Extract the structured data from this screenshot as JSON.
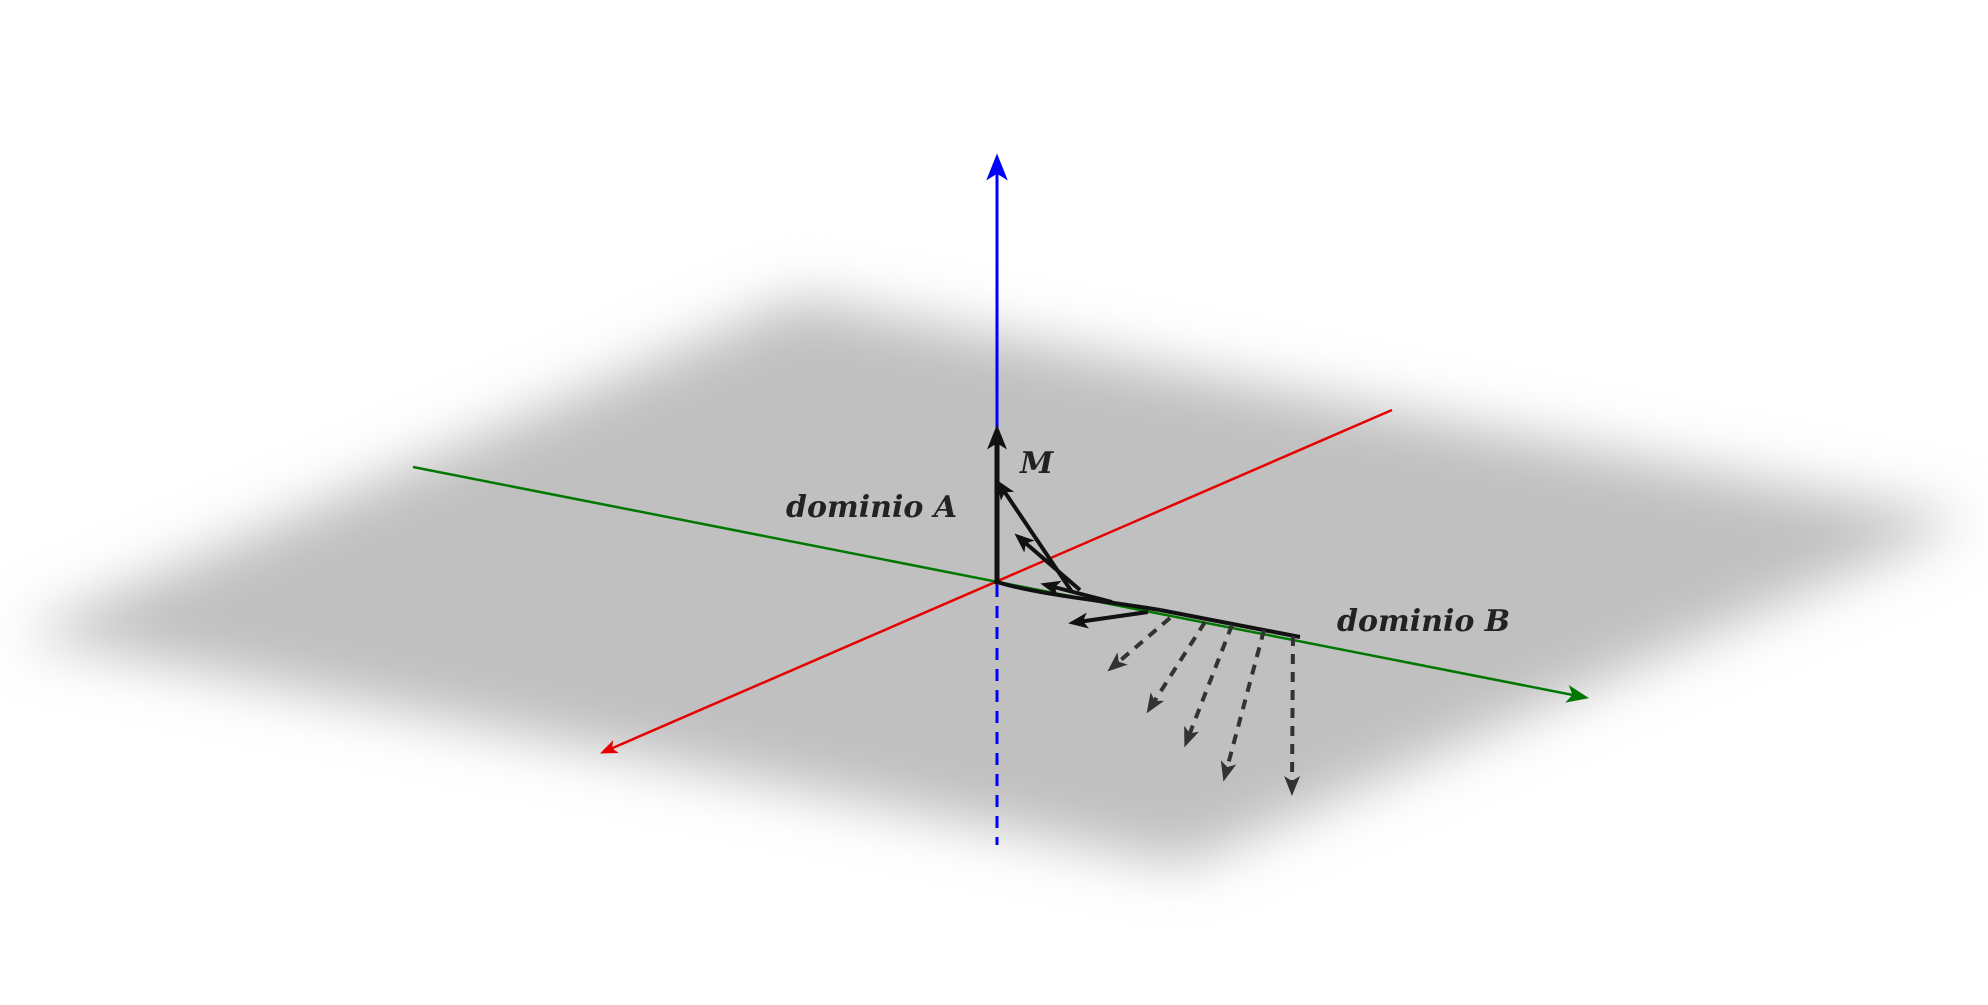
{
  "diagram": {
    "labels": {
      "vector_m": "M",
      "domain_a": "dominio A",
      "domain_b": "dominio B"
    },
    "colors": {
      "background": "#ffffff",
      "plane_fill": "#c0c0c0",
      "x_axis": "#e60000",
      "y_axis": "#007800",
      "z_axis": "#0000ff",
      "vectors": "#111111",
      "dashed_vectors": "#333333"
    },
    "elements": {
      "plane": "xy-plane",
      "axes": [
        "x-axis",
        "y-axis",
        "z-axis"
      ],
      "solid_vector_count": 5,
      "dashed_vector_count": 5
    }
  }
}
